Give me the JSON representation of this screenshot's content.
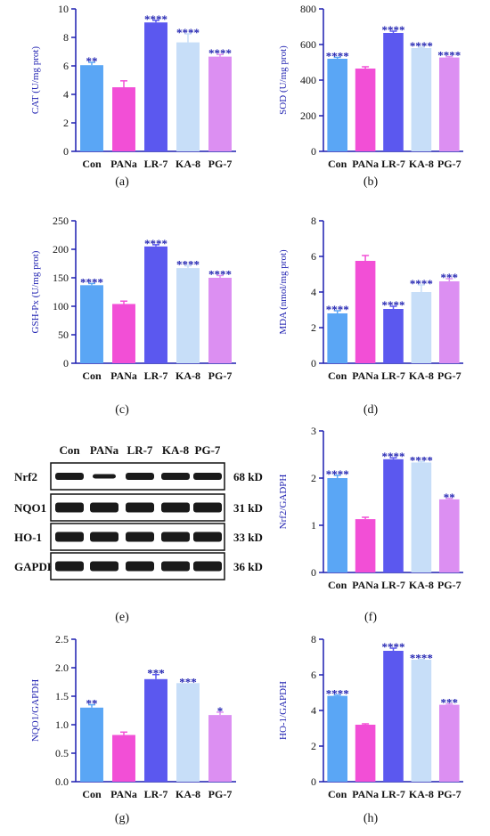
{
  "captions": [
    "(a)",
    "(b)",
    "(c)",
    "(d)",
    "(e)",
    "(f)",
    "(g)",
    "(h)"
  ],
  "colors": {
    "axis": "#1d1fb0",
    "star": "#1d1fb0",
    "bars": [
      "#5aa6f5",
      "#f24fd6",
      "#5b58ef",
      "#c7def8",
      "#dc8ff2"
    ]
  },
  "chart_data": [
    {
      "panel": "a",
      "type": "bar",
      "categories": [
        "Con",
        "PANa",
        "LR-7",
        "KA-8",
        "PG-7"
      ],
      "values": [
        6.05,
        4.5,
        9.05,
        7.65,
        6.65
      ],
      "errors": [
        0.2,
        0.45,
        0.15,
        0.6,
        0.15
      ],
      "significance": [
        "**",
        "",
        "****",
        "****",
        "****"
      ],
      "ylabel": "CAT (U/mg prot)",
      "ylim": [
        0,
        10
      ],
      "yticks": [
        0,
        2,
        4,
        6,
        8,
        10
      ]
    },
    {
      "panel": "b",
      "type": "bar",
      "categories": [
        "Con",
        "PANa",
        "LR-7",
        "KA-8",
        "PG-7"
      ],
      "values": [
        520,
        465,
        665,
        580,
        527
      ],
      "errors": [
        8,
        10,
        10,
        5,
        5
      ],
      "significance": [
        "****",
        "",
        "****",
        "****",
        "****"
      ],
      "ylabel": "SOD (U/mg prot)",
      "ylim": [
        0,
        800
      ],
      "yticks": [
        0,
        200,
        400,
        600,
        800
      ]
    },
    {
      "panel": "c",
      "type": "bar",
      "categories": [
        "Con",
        "PANa",
        "LR-7",
        "KA-8",
        "PG-7"
      ],
      "values": [
        137,
        104,
        205,
        167,
        150
      ],
      "errors": [
        3,
        5,
        3,
        4,
        4
      ],
      "significance": [
        "****",
        "",
        "****",
        "****",
        "****"
      ],
      "ylabel": "GSH-Px (U/mg prot)",
      "ylim": [
        0,
        250
      ],
      "yticks": [
        0,
        50,
        100,
        150,
        200,
        250
      ]
    },
    {
      "panel": "d",
      "type": "bar",
      "categories": [
        "Con",
        "PANa",
        "LR-7",
        "KA-8",
        "PG-7"
      ],
      "values": [
        2.8,
        5.75,
        3.05,
        4.0,
        4.6
      ],
      "errors": [
        0.15,
        0.3,
        0.15,
        0.4,
        0.15
      ],
      "significance": [
        "****",
        "",
        "****",
        "****",
        "***"
      ],
      "ylabel": "MDA (nmol/mg prot)",
      "ylim": [
        0,
        8
      ],
      "yticks": [
        0,
        2,
        4,
        6,
        8
      ]
    },
    {
      "panel": "f",
      "type": "bar",
      "categories": [
        "Con",
        "PANa",
        "LR-7",
        "KA-8",
        "PG-7"
      ],
      "values": [
        2.0,
        1.13,
        2.4,
        2.33,
        1.55
      ],
      "errors": [
        0.06,
        0.04,
        0.03,
        0.02,
        0.02
      ],
      "significance": [
        "****",
        "",
        "****",
        "****",
        "**"
      ],
      "ylabel": "Nrf2/GADPH",
      "ylim": [
        0,
        3
      ],
      "yticks": [
        0,
        1,
        2,
        3
      ]
    },
    {
      "panel": "g",
      "type": "bar",
      "categories": [
        "Con",
        "PANa",
        "LR-7",
        "KA-8",
        "PG-7"
      ],
      "values": [
        1.3,
        0.82,
        1.8,
        1.73,
        1.17
      ],
      "errors": [
        0.05,
        0.05,
        0.08,
        0.0,
        0.05
      ],
      "significance": [
        "**",
        "",
        "***",
        "***",
        "*"
      ],
      "ylabel": "NQO1/GAPDH",
      "ylim": [
        0,
        2.5
      ],
      "yticks": [
        "0.0",
        "0.5",
        "1.0",
        "1.5",
        "2.0",
        "2.5"
      ]
    },
    {
      "panel": "h",
      "type": "bar",
      "categories": [
        "Con",
        "PANa",
        "LR-7",
        "KA-8",
        "PG-7"
      ],
      "values": [
        4.82,
        3.2,
        7.35,
        6.85,
        4.32
      ],
      "errors": [
        0.05,
        0.05,
        0.15,
        0.02,
        0.05
      ],
      "significance": [
        "****",
        "",
        "****",
        "****",
        "***"
      ],
      "ylabel": "HO-1/GAPDH",
      "ylim": [
        0,
        8
      ],
      "yticks": [
        0,
        2,
        4,
        6,
        8
      ]
    }
  ],
  "western_blot": {
    "lanes": [
      "Con",
      "PANa",
      "LR-7",
      "KA-8",
      "PG-7"
    ],
    "rows": [
      {
        "protein": "Nrf2",
        "kd": "68 kD"
      },
      {
        "protein": "NQO1",
        "kd": "31 kD"
      },
      {
        "protein": "HO-1",
        "kd": "33 kD"
      },
      {
        "protein": "GAPDH",
        "kd": "36 kD"
      }
    ]
  }
}
